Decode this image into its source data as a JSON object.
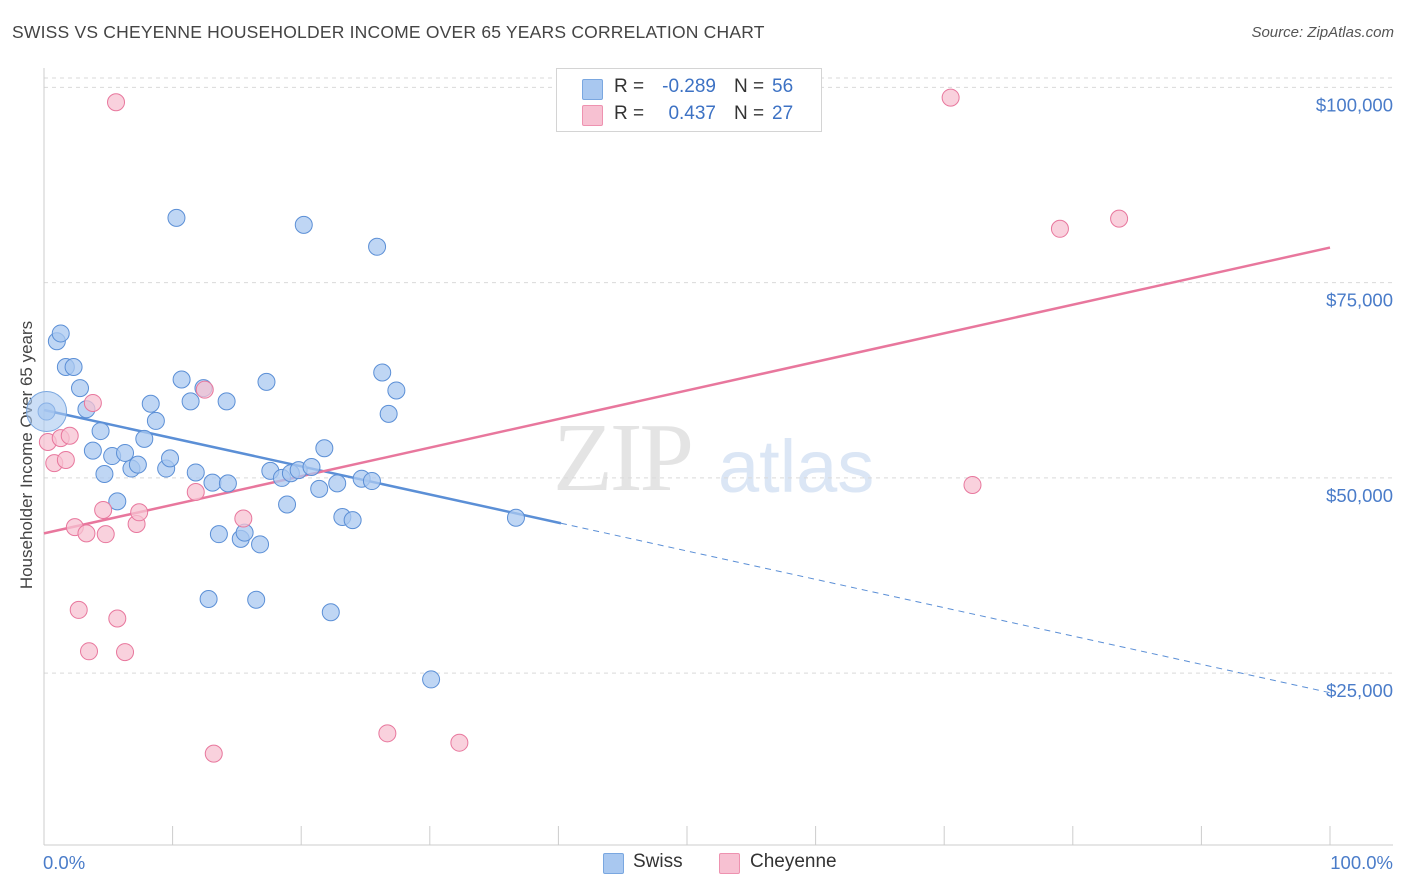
{
  "header": {
    "title": "SWISS VS CHEYENNE HOUSEHOLDER INCOME OVER 65 YEARS CORRELATION CHART",
    "source": "Source: ZipAtlas.com"
  },
  "watermark": {
    "zip": "ZIP",
    "atlas": "atlas"
  },
  "legend": {
    "r_label": "R =",
    "n_label": "N =",
    "items": [
      {
        "name": "Swiss",
        "r": "-0.289",
        "n": "56",
        "color": "#a9c8f0",
        "stroke": "#7aa7e0"
      },
      {
        "name": "Cheyenne",
        "r": "0.437",
        "n": "27",
        "color": "#f7c1d2",
        "stroke": "#ee92b0"
      }
    ]
  },
  "chart_data": {
    "type": "scatter",
    "title": "SWISS VS CHEYENNE HOUSEHOLDER INCOME OVER 65 YEARS CORRELATION CHART",
    "xlabel": "",
    "ylabel": "Householder Income Over 65 years",
    "x_tick_labels": [
      "0.0%",
      "100.0%"
    ],
    "y_tick_labels": [
      "$100,000",
      "$75,000",
      "$50,000",
      "$25,000"
    ],
    "y_ticks": [
      100000,
      75000,
      50000,
      25000
    ],
    "xlim": [
      0,
      100
    ],
    "ylim": [
      3000,
      103000
    ],
    "grid": true,
    "legend_position": "top-center",
    "series": [
      {
        "name": "Swiss",
        "color": "#5b8fd6",
        "fill": "#a9c8f0",
        "points": [
          [
            0.2,
            58500
          ],
          [
            1.0,
            67500
          ],
          [
            1.3,
            68500
          ],
          [
            1.7,
            64200
          ],
          [
            2.3,
            64200
          ],
          [
            2.8,
            61500
          ],
          [
            3.3,
            58800
          ],
          [
            3.8,
            53500
          ],
          [
            4.4,
            56000
          ],
          [
            4.7,
            50500
          ],
          [
            5.3,
            52800
          ],
          [
            5.7,
            47000
          ],
          [
            6.3,
            53200
          ],
          [
            6.8,
            51200
          ],
          [
            7.3,
            51700
          ],
          [
            7.8,
            55000
          ],
          [
            8.3,
            59500
          ],
          [
            8.7,
            57300
          ],
          [
            9.5,
            51200
          ],
          [
            9.8,
            52500
          ],
          [
            10.3,
            83300
          ],
          [
            10.7,
            62600
          ],
          [
            11.4,
            59800
          ],
          [
            11.8,
            50700
          ],
          [
            12.4,
            61500
          ],
          [
            12.8,
            34500
          ],
          [
            13.1,
            49400
          ],
          [
            13.6,
            42800
          ],
          [
            14.3,
            49300
          ],
          [
            14.2,
            59800
          ],
          [
            15.3,
            42200
          ],
          [
            15.6,
            43000
          ],
          [
            16.5,
            34400
          ],
          [
            16.8,
            41500
          ],
          [
            17.3,
            62300
          ],
          [
            17.6,
            50900
          ],
          [
            18.5,
            50000
          ],
          [
            18.9,
            46600
          ],
          [
            19.2,
            50600
          ],
          [
            19.8,
            51000
          ],
          [
            20.2,
            82400
          ],
          [
            20.8,
            51400
          ],
          [
            21.4,
            48600
          ],
          [
            21.8,
            53800
          ],
          [
            22.3,
            32800
          ],
          [
            22.8,
            49300
          ],
          [
            23.2,
            45000
          ],
          [
            24.0,
            44600
          ],
          [
            24.7,
            49900
          ],
          [
            25.5,
            49600
          ],
          [
            25.9,
            79600
          ],
          [
            26.3,
            63500
          ],
          [
            26.8,
            58200
          ],
          [
            27.4,
            61200
          ],
          [
            30.1,
            24200
          ],
          [
            36.7,
            44900
          ]
        ]
      },
      {
        "name": "Cheyenne",
        "color": "#e8779d",
        "fill": "#f7c1d2",
        "points": [
          [
            0.3,
            54600
          ],
          [
            0.8,
            51900
          ],
          [
            1.3,
            55100
          ],
          [
            1.7,
            52300
          ],
          [
            2.0,
            55400
          ],
          [
            2.4,
            43700
          ],
          [
            2.7,
            33100
          ],
          [
            3.3,
            42900
          ],
          [
            3.5,
            27800
          ],
          [
            3.8,
            59600
          ],
          [
            4.6,
            45900
          ],
          [
            4.8,
            42800
          ],
          [
            5.6,
            98100
          ],
          [
            5.7,
            32000
          ],
          [
            6.3,
            27700
          ],
          [
            7.2,
            44100
          ],
          [
            7.4,
            45600
          ],
          [
            11.8,
            48200
          ],
          [
            12.5,
            61300
          ],
          [
            13.2,
            14700
          ],
          [
            15.5,
            44800
          ],
          [
            26.7,
            17300
          ],
          [
            32.3,
            16100
          ],
          [
            70.5,
            98700
          ],
          [
            72.2,
            49100
          ],
          [
            79.0,
            81900
          ],
          [
            83.6,
            83200
          ]
        ]
      }
    ],
    "trend_lines": [
      {
        "series": "Swiss",
        "from": [
          0,
          58700
        ],
        "to": [
          40.2,
          44200
        ],
        "dashed_to": [
          100,
          22500
        ]
      },
      {
        "series": "Cheyenne",
        "from": [
          0,
          42900
        ],
        "to": [
          100,
          79500
        ]
      }
    ]
  }
}
